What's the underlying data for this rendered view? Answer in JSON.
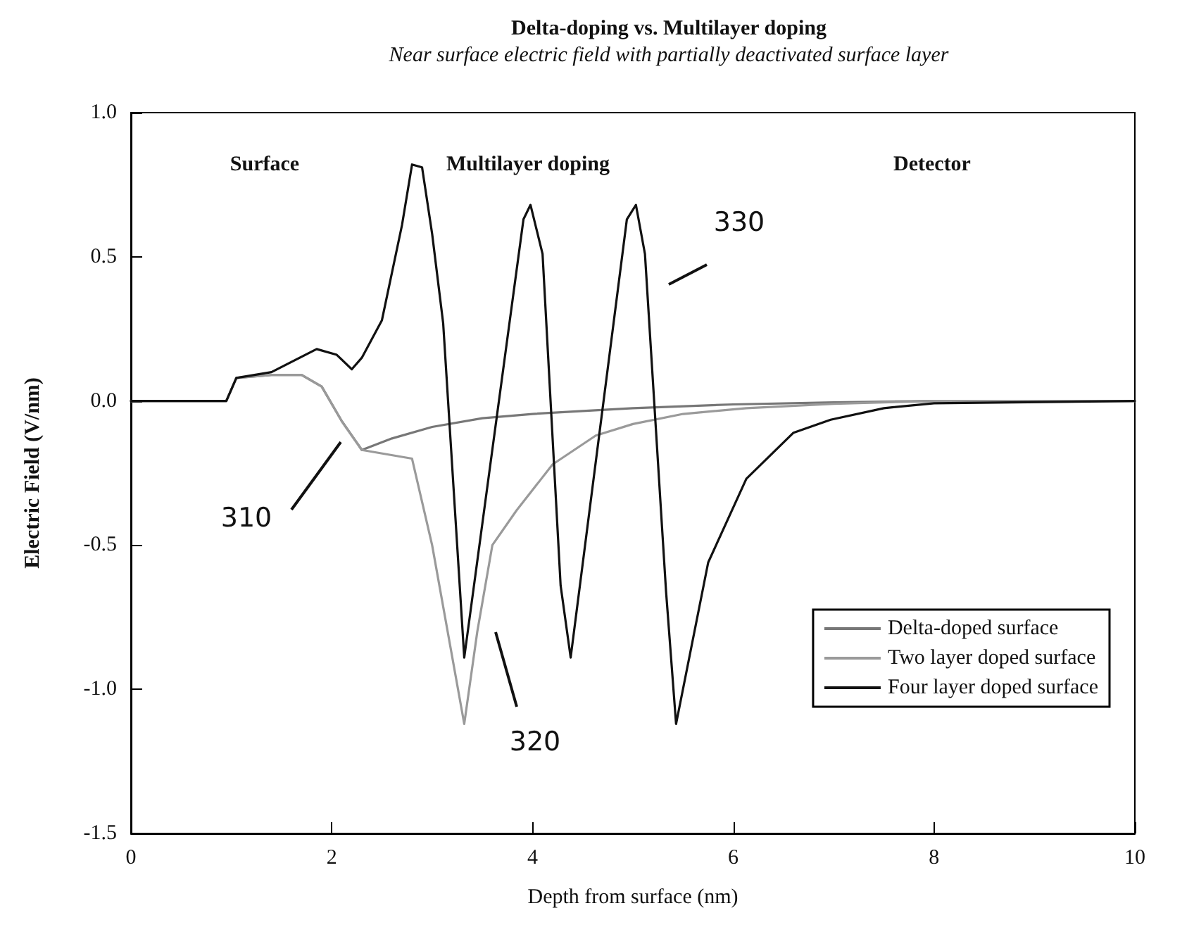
{
  "chart_data": {
    "type": "line",
    "title": "Delta-doping vs. Multilayer doping",
    "subtitle": "Near surface electric field with partially deactivated surface layer",
    "xlabel": "Depth from surface (nm)",
    "ylabel": "Electric Field (V/nm)",
    "xlim": [
      0,
      10
    ],
    "xticks": [
      0,
      2,
      4,
      6,
      8,
      10
    ],
    "ylim": [
      -1.5,
      1.0
    ],
    "yticks": [
      {
        "value": -1.5,
        "label": "-1.5"
      },
      {
        "value": -1,
        "label": "-1.0"
      },
      {
        "value": -0.5,
        "label": "-0.5"
      },
      {
        "value": 0,
        "label": "0.0"
      },
      {
        "value": 0.5,
        "label": "0.5"
      },
      {
        "value": 1,
        "label": "1.0"
      }
    ],
    "grid": false,
    "legend": "bottom right",
    "marker": "none",
    "line_style": "solid",
    "series": [
      {
        "name": "Delta-doped surface",
        "color": "#777777",
        "x": [
          0,
          0.95,
          1.05,
          1.4,
          1.7,
          1.9,
          2.1,
          2.3,
          2.6,
          3.0,
          3.5,
          4.0,
          4.5,
          5.0,
          6.0,
          7.0,
          8.0,
          10.0
        ],
        "values": [
          0,
          0,
          0.08,
          0.09,
          0.09,
          0.05,
          -0.07,
          -0.17,
          -0.13,
          -0.09,
          -0.06,
          -0.045,
          -0.035,
          -0.025,
          -0.012,
          -0.005,
          0,
          0
        ]
      },
      {
        "name": "Two layer doped surface",
        "color": "#9a9a9a",
        "x": [
          0,
          0.95,
          1.05,
          1.4,
          1.7,
          1.9,
          2.1,
          2.3,
          2.8,
          3.0,
          3.32,
          3.45,
          3.6,
          3.84,
          4.2,
          4.63,
          5.0,
          5.5,
          6.13,
          7.0,
          8.0,
          10.0
        ],
        "values": [
          0,
          0,
          0.08,
          0.09,
          0.09,
          0.05,
          -0.07,
          -0.17,
          -0.2,
          -0.5,
          -1.12,
          -0.8,
          -0.5,
          -0.38,
          -0.22,
          -0.12,
          -0.08,
          -0.045,
          -0.025,
          -0.01,
          0,
          0
        ]
      },
      {
        "name": "Four layer doped surface",
        "color": "#111111",
        "x": [
          0,
          0.95,
          1.05,
          1.4,
          1.85,
          2.05,
          2.2,
          2.3,
          2.5,
          2.7,
          2.8,
          2.9,
          3.0,
          3.11,
          3.32,
          3.91,
          3.98,
          4.1,
          4.28,
          4.38,
          4.94,
          5.03,
          5.12,
          5.33,
          5.43,
          5.75,
          6.13,
          6.6,
          6.97,
          7.5,
          8.0,
          10.0
        ],
        "values": [
          0,
          0,
          0.08,
          0.1,
          0.18,
          0.16,
          0.11,
          0.15,
          0.28,
          0.61,
          0.82,
          0.81,
          0.58,
          0.27,
          -0.89,
          0.63,
          0.68,
          0.51,
          -0.64,
          -0.89,
          0.63,
          0.68,
          0.51,
          -0.66,
          -1.12,
          -0.56,
          -0.27,
          -0.11,
          -0.065,
          -0.025,
          -0.008,
          0
        ]
      }
    ],
    "annotations": [
      "Surface",
      "Multilayer doping",
      "Detector",
      "310",
      "320",
      "330"
    ]
  }
}
